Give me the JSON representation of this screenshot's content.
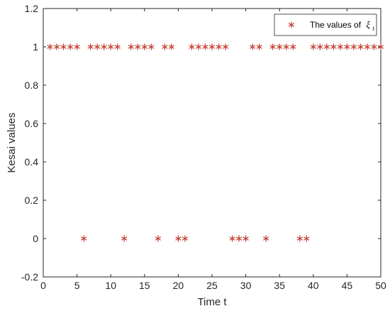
{
  "chart_data": {
    "type": "scatter",
    "xlabel": "Time t",
    "ylabel": "Kesai values",
    "xlim": [
      0,
      50
    ],
    "ylim": [
      -0.2,
      1.2
    ],
    "x_ticks": [
      "0",
      "5",
      "10",
      "15",
      "20",
      "25",
      "30",
      "35",
      "40",
      "45",
      "50"
    ],
    "y_ticks": [
      "-0.2",
      "0",
      "0.2",
      "0.4",
      "0.6",
      "0.8",
      "1",
      "1.2"
    ],
    "grid": false,
    "legend_position": "top-right",
    "marker": "asterisk",
    "marker_color": "#c0392b",
    "series": [
      {
        "name": "The values of ξt",
        "legend_prefix": "The values of",
        "legend_symbol": "ξ",
        "legend_subscript": "t",
        "x": [
          1,
          2,
          3,
          4,
          5,
          6,
          7,
          8,
          9,
          10,
          11,
          12,
          13,
          14,
          15,
          16,
          17,
          18,
          19,
          20,
          21,
          22,
          23,
          24,
          25,
          26,
          27,
          28,
          29,
          30,
          31,
          32,
          33,
          34,
          35,
          36,
          37,
          38,
          39,
          40,
          41,
          42,
          43,
          44,
          45,
          46,
          47,
          48,
          49,
          50
        ],
        "y": [
          1,
          1,
          1,
          1,
          1,
          0,
          1,
          1,
          1,
          1,
          1,
          0,
          1,
          1,
          1,
          1,
          0,
          1,
          1,
          0,
          0,
          1,
          1,
          1,
          1,
          1,
          1,
          0,
          0,
          0,
          1,
          1,
          0,
          1,
          1,
          1,
          1,
          0,
          0,
          1,
          1,
          1,
          1,
          1,
          1,
          1,
          1,
          1,
          1,
          1
        ]
      }
    ]
  }
}
